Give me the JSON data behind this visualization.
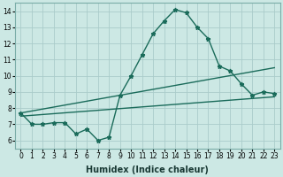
{
  "xlabel": "Humidex (Indice chaleur)",
  "background_color": "#cce8e4",
  "grid_color": "#aaccca",
  "line_color": "#1a6b5a",
  "xlim": [
    -0.5,
    23.5
  ],
  "ylim": [
    5.5,
    14.5
  ],
  "xticks": [
    0,
    1,
    2,
    3,
    4,
    5,
    6,
    7,
    8,
    9,
    10,
    11,
    12,
    13,
    14,
    15,
    16,
    17,
    18,
    19,
    20,
    21,
    22,
    23
  ],
  "yticks": [
    6,
    7,
    8,
    9,
    10,
    11,
    12,
    13,
    14
  ],
  "curve1_x": [
    0,
    1,
    2,
    3,
    4,
    5,
    6,
    7,
    8,
    9,
    10,
    11,
    12,
    13,
    14,
    15,
    16,
    17,
    18,
    19,
    20,
    21,
    22,
    23
  ],
  "curve1_y": [
    7.7,
    7.0,
    7.0,
    7.1,
    7.1,
    6.4,
    6.7,
    6.0,
    6.2,
    8.8,
    10.0,
    11.3,
    12.6,
    13.4,
    14.1,
    13.9,
    13.0,
    12.3,
    10.6,
    10.3,
    9.5,
    8.8,
    9.0,
    8.9
  ],
  "curve2_x": [
    0,
    23
  ],
  "curve2_y": [
    7.5,
    8.7
  ],
  "curve3_x": [
    0,
    23
  ],
  "curve3_y": [
    7.7,
    10.5
  ],
  "marker": "*",
  "markersize": 3.5,
  "linewidth": 1.0,
  "xlabel_fontsize": 7,
  "tick_fontsize": 5.5
}
